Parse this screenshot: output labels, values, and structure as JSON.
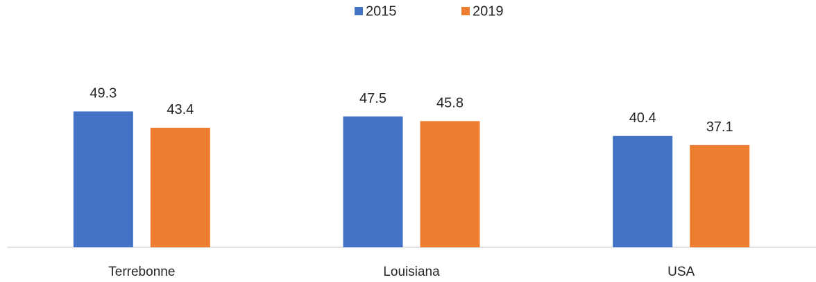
{
  "chart_data": {
    "type": "bar",
    "categories": [
      "Terrebonne",
      "Louisiana",
      "USA"
    ],
    "series": [
      {
        "name": "2015",
        "color": "#4472c4",
        "values": [
          49.3,
          47.5,
          40.4
        ]
      },
      {
        "name": "2019",
        "color": "#ed7d31",
        "values": [
          43.4,
          45.8,
          37.1
        ]
      }
    ],
    "ylim": [
      0,
      60
    ],
    "legend": "top"
  }
}
